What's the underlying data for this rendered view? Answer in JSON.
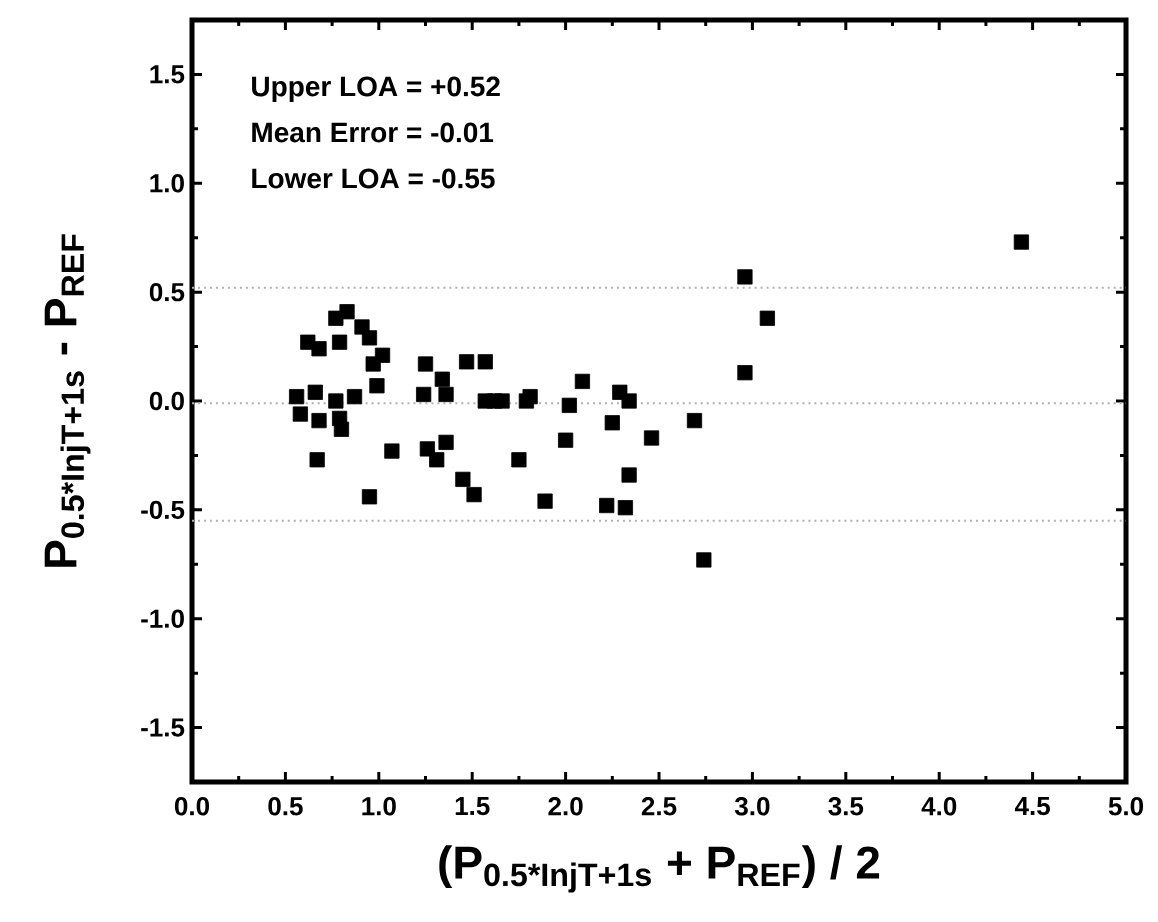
{
  "chart_data": {
    "type": "scatter",
    "xlabel": "(P$_{0.5*InjT+1s}$ + P$_{REF}$) / 2",
    "ylabel": "P$_{0.5*InjT+1s}$ - P$_{REF}$",
    "annotations": [
      "Upper LOA = +0.52",
      "Mean Error = -0.01",
      "Lower LOA = -0.55"
    ],
    "xlim": [
      0,
      5
    ],
    "ylim": [
      -1.75,
      1.75
    ],
    "xticks": [
      {
        "value": 0,
        "label": "0.0"
      },
      {
        "value": 0.5,
        "label": "0.5"
      },
      {
        "value": 1,
        "label": "1.0"
      },
      {
        "value": 1.5,
        "label": "1.5"
      },
      {
        "value": 2,
        "label": "2.0"
      },
      {
        "value": 2.5,
        "label": "2.5"
      },
      {
        "value": 3,
        "label": "3.0"
      },
      {
        "value": 3.5,
        "label": "3.5"
      },
      {
        "value": 4,
        "label": "4.0"
      },
      {
        "value": 4.5,
        "label": "4.5"
      },
      {
        "value": 5,
        "label": "5.0"
      }
    ],
    "yticks": [
      {
        "value": -1.5,
        "label": "-1.5"
      },
      {
        "value": -1,
        "label": "-1.0"
      },
      {
        "value": -0.5,
        "label": "-0.5"
      },
      {
        "value": 0,
        "label": "0.0"
      },
      {
        "value": 0.5,
        "label": "0.5"
      },
      {
        "value": 1,
        "label": "1.0"
      },
      {
        "value": 1.5,
        "label": "1.5"
      }
    ],
    "marker": "square",
    "grid": false,
    "ref_lines": [
      {
        "axis": "y",
        "value": 0.52,
        "color": "#b0b0b0",
        "line_style": "dotted"
      },
      {
        "axis": "y",
        "value": -0.01,
        "color": "#b0b0b0",
        "line_style": "dotted"
      },
      {
        "axis": "y",
        "value": -0.55,
        "color": "#b0b0b0",
        "line_style": "dotted"
      }
    ],
    "series": [
      {
        "color": "#000000",
        "x": [
          0.56,
          0.58,
          0.62,
          0.68,
          0.66,
          0.68,
          0.67,
          0.77,
          0.79,
          0.77,
          0.79,
          0.8,
          0.83,
          0.87,
          0.91,
          0.95,
          0.97,
          0.99,
          1.02,
          0.95,
          1.07,
          1.25,
          1.24,
          1.26,
          1.31,
          1.34,
          1.36,
          1.36,
          1.45,
          1.51,
          1.47,
          1.57,
          1.57,
          1.62,
          1.66,
          1.75,
          1.79,
          1.81,
          1.89,
          2.0,
          2.02,
          2.09,
          2.22,
          2.25,
          2.29,
          2.32,
          2.34,
          2.34,
          2.46,
          2.69,
          2.74,
          2.96,
          2.96,
          3.08,
          4.44
        ],
        "values": [
          0.02,
          -0.06,
          0.27,
          0.24,
          0.04,
          -0.09,
          -0.27,
          0.38,
          0.27,
          0.0,
          -0.08,
          -0.13,
          0.41,
          0.02,
          0.34,
          0.29,
          0.17,
          0.07,
          0.21,
          -0.44,
          -0.23,
          0.17,
          0.03,
          -0.22,
          -0.27,
          0.1,
          0.03,
          -0.19,
          -0.36,
          -0.43,
          0.18,
          0.18,
          0.0,
          0.0,
          0.0,
          -0.27,
          0.0,
          0.02,
          -0.46,
          -0.18,
          -0.02,
          0.09,
          -0.48,
          -0.1,
          0.04,
          -0.49,
          0.0,
          -0.34,
          -0.17,
          -0.09,
          -0.73,
          0.57,
          0.13,
          0.38,
          0.73
        ]
      }
    ]
  }
}
